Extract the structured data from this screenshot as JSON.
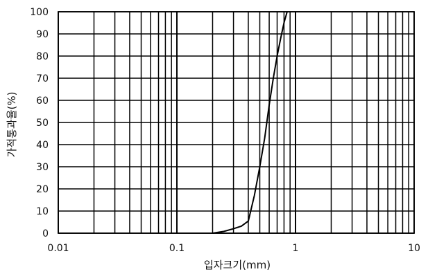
{
  "chart_data": {
    "type": "line",
    "title": "",
    "xlabel": "입자크기(mm)",
    "ylabel": "가적통과율(%)",
    "x_scale": "log",
    "xlim": [
      0.01,
      10
    ],
    "ylim": [
      0,
      100
    ],
    "x_ticks": [
      "0.01",
      "0.1",
      "1",
      "10"
    ],
    "y_ticks": [
      "0",
      "10",
      "20",
      "30",
      "40",
      "50",
      "60",
      "70",
      "80",
      "90",
      "100"
    ],
    "grid": true,
    "legend": "none",
    "line_color": "#000000",
    "series": [
      {
        "x": [
          0.2,
          0.25,
          0.3,
          0.35,
          0.4,
          0.45,
          0.5,
          0.55,
          0.6,
          0.65,
          0.7,
          0.75,
          0.8,
          0.85
        ],
        "y": [
          0,
          0.8,
          2,
          3.2,
          5.5,
          17,
          30,
          43,
          58,
          70,
          80,
          88,
          95,
          100
        ]
      }
    ]
  }
}
